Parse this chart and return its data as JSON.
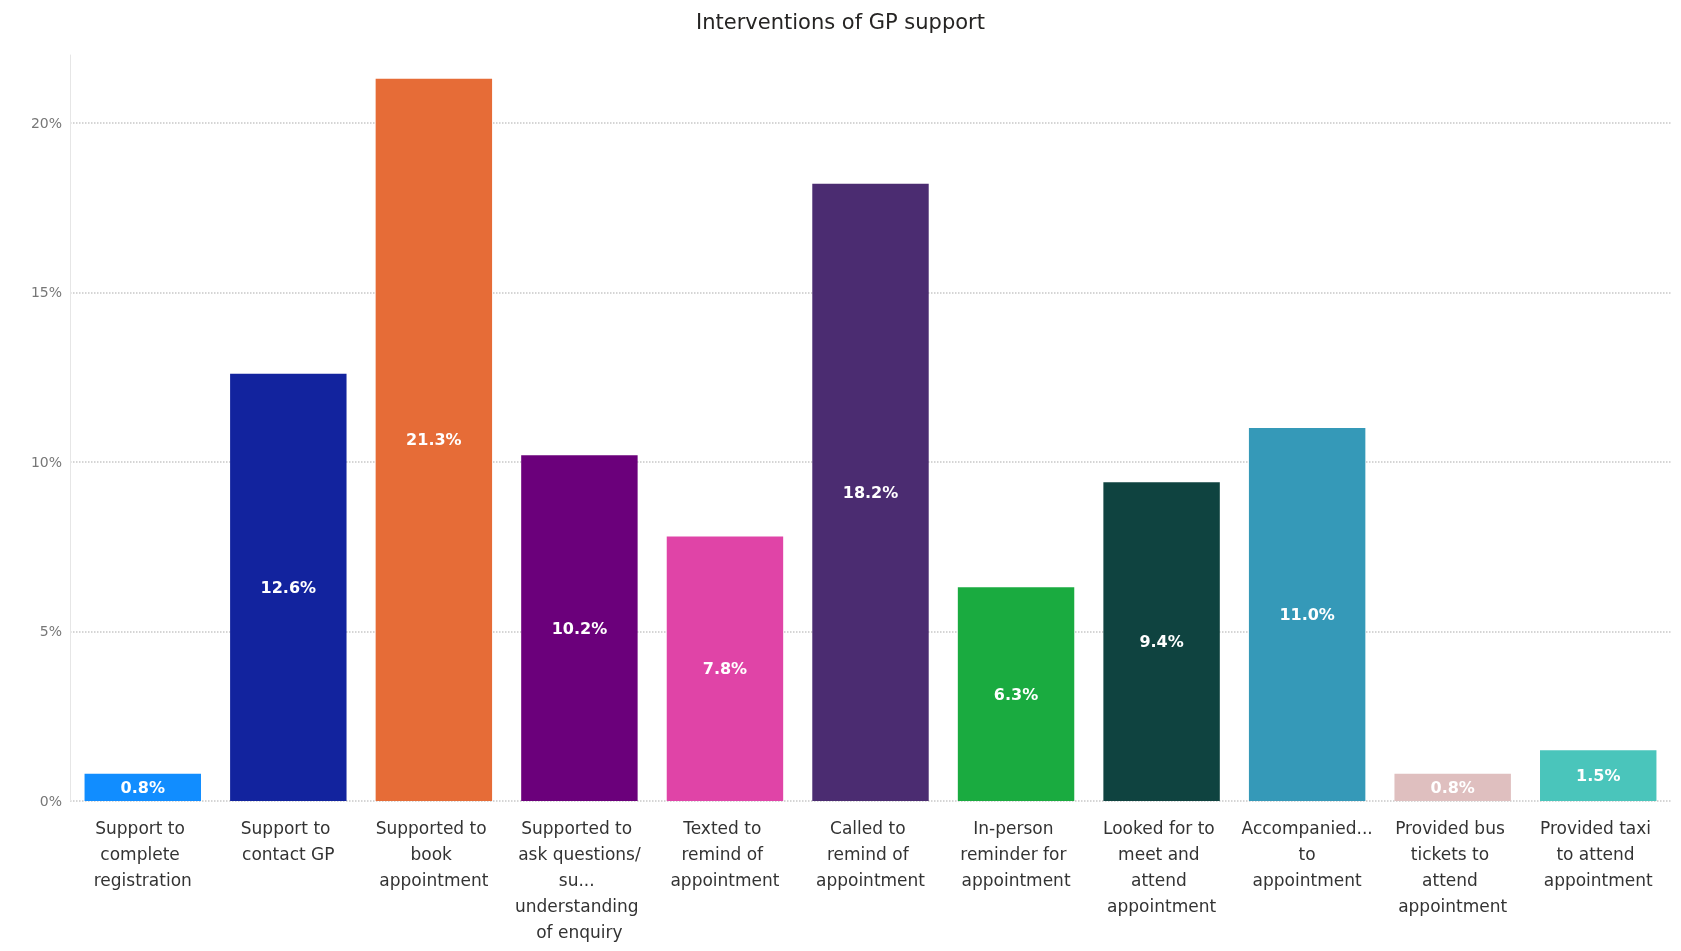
{
  "chart_data": {
    "type": "bar",
    "title": "Interventions of GP support",
    "categories": [
      "Support to complete registration",
      "Support to contact GP",
      "Supported to book appointment",
      "Supported to ask questions/su... understanding of enquiry",
      "Texted to remind of appointment",
      "Called to remind of appointment",
      "In-person reminder for appointment",
      "Looked for to meet and attend appointment",
      "Accompanied... to appointment",
      "Provided bus tickets to attend appointment",
      "Provided taxi to attend appointment"
    ],
    "values": [
      0.8,
      12.6,
      21.3,
      10.2,
      7.8,
      18.2,
      6.3,
      9.4,
      11.0,
      0.8,
      1.5
    ],
    "value_labels": [
      "0.8%",
      "12.6%",
      "21.3%",
      "10.2%",
      "7.8%",
      "18.2%",
      "6.3%",
      "9.4%",
      "11.0%",
      "0.8%",
      "1.5%"
    ],
    "colors": [
      "#118dff",
      "#12239e",
      "#e66c37",
      "#6b007b",
      "#e044a7",
      "#4b2c71",
      "#1aab40",
      "#0f4340",
      "#3599b8",
      "#dfbfbf",
      "#4ac5bb"
    ],
    "ylim": [
      0,
      22
    ],
    "yticks": [
      {
        "value": 0,
        "label": "0%"
      },
      {
        "value": 5,
        "label": "5%"
      },
      {
        "value": 10,
        "label": "10%"
      },
      {
        "value": 15,
        "label": "15%"
      },
      {
        "value": 20,
        "label": "20%"
      }
    ],
    "grid": "y"
  }
}
